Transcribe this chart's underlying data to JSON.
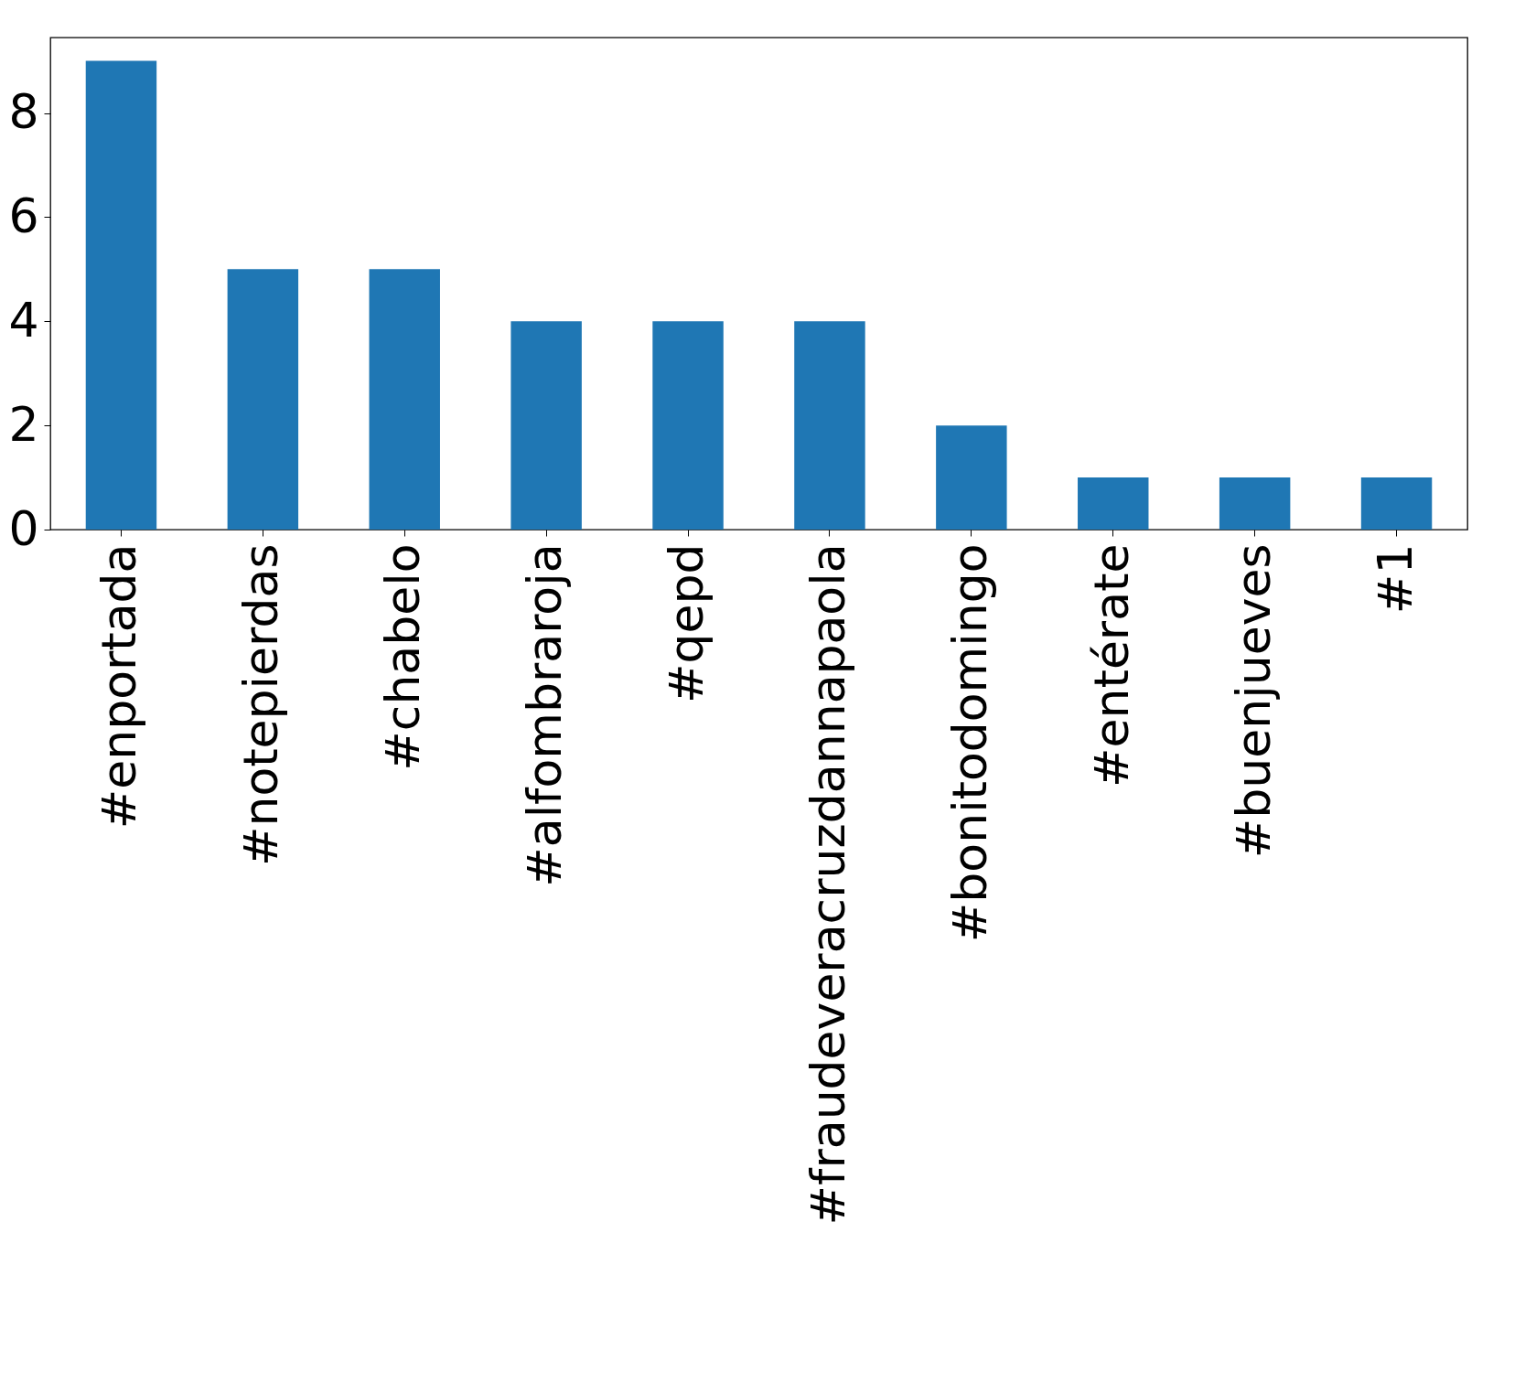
{
  "chart_data": {
    "type": "bar",
    "categories": [
      "#enportada",
      "#notepierdas",
      "#chabelo",
      "#alfombraroja",
      "#qepd",
      "#fraudeveracruzdannapaola",
      "#bonitodomingo",
      "#entérate",
      "#buenjueves",
      "#1"
    ],
    "values": [
      9,
      5,
      5,
      4,
      4,
      4,
      2,
      1,
      1,
      1
    ],
    "color": "#1f77b4",
    "ylim": [
      0,
      9.45
    ],
    "yticks": [
      0,
      2,
      4,
      6,
      8
    ],
    "grid": false
  }
}
